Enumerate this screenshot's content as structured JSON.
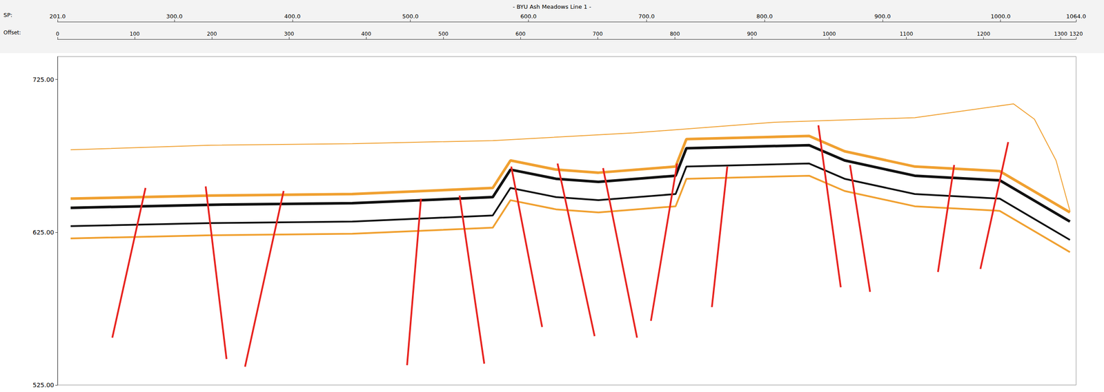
{
  "chart_data": {
    "type": "line",
    "title": "- BYU Ash Meadows Line 1 -",
    "x_label": "Offset:",
    "x2_label": "SP:",
    "xlim": [
      0,
      1320
    ],
    "xticks": [
      0,
      100,
      200,
      300,
      400,
      500,
      600,
      700,
      800,
      900,
      1000,
      1100,
      1200,
      1300,
      1320
    ],
    "x2lim": [
      201,
      1064
    ],
    "x2ticks": [
      {
        "value": 201,
        "label": "201.0"
      },
      {
        "value": 300,
        "label": "300.0"
      },
      {
        "value": 400,
        "label": "400.0"
      },
      {
        "value": 500,
        "label": "500.0"
      },
      {
        "value": 600,
        "label": "600.0"
      },
      {
        "value": 700,
        "label": "700.0"
      },
      {
        "value": 800,
        "label": "800.0"
      },
      {
        "value": 900,
        "label": "900.0"
      },
      {
        "value": 1000,
        "label": "1000.0"
      },
      {
        "value": 1064,
        "label": "1064.0"
      }
    ],
    "ylim": [
      525,
      740
    ],
    "yticks": [
      {
        "value": 525,
        "label": "525.00"
      },
      {
        "value": 625,
        "label": "625.00"
      },
      {
        "value": 725,
        "label": "725.00"
      }
    ],
    "grid": false,
    "series": [
      {
        "color": "#f0a030",
        "line_style": "thin",
        "values": [
          [
            17,
            679
          ],
          [
            199,
            682
          ],
          [
            382,
            683
          ],
          [
            564,
            685
          ],
          [
            746,
            690
          ],
          [
            929,
            697
          ],
          [
            1111,
            700
          ],
          [
            1239,
            709
          ],
          [
            1266,
            699
          ],
          [
            1294,
            672
          ],
          [
            1312,
            639
          ]
        ]
      },
      {
        "color": "#f0a030",
        "line_style": "medium",
        "values": [
          [
            17,
            621
          ],
          [
            199,
            623
          ],
          [
            382,
            624
          ],
          [
            564,
            628
          ],
          [
            587,
            646
          ],
          [
            646,
            640
          ],
          [
            701,
            638
          ],
          [
            801,
            642
          ],
          [
            815,
            660
          ],
          [
            974,
            662
          ],
          [
            1020,
            652
          ],
          [
            1111,
            642
          ],
          [
            1221,
            639
          ],
          [
            1312,
            612
          ]
        ]
      },
      {
        "color": "#111111",
        "line_style": "medium",
        "values": [
          [
            17,
            629
          ],
          [
            199,
            631
          ],
          [
            382,
            632
          ],
          [
            564,
            636
          ],
          [
            587,
            654
          ],
          [
            646,
            648
          ],
          [
            701,
            646
          ],
          [
            801,
            650
          ],
          [
            815,
            668
          ],
          [
            974,
            670
          ],
          [
            1020,
            660
          ],
          [
            1111,
            650
          ],
          [
            1221,
            647
          ],
          [
            1312,
            620
          ]
        ]
      },
      {
        "color": "#f0a030",
        "line_style": "thick",
        "values": [
          [
            17,
            647
          ],
          [
            199,
            649
          ],
          [
            382,
            650
          ],
          [
            564,
            654
          ],
          [
            587,
            672
          ],
          [
            646,
            666
          ],
          [
            701,
            664
          ],
          [
            801,
            668
          ],
          [
            815,
            686
          ],
          [
            974,
            688
          ],
          [
            1020,
            678
          ],
          [
            1111,
            668
          ],
          [
            1221,
            665
          ],
          [
            1312,
            638
          ]
        ]
      },
      {
        "color": "#111111",
        "line_style": "thick",
        "values": [
          [
            17,
            641
          ],
          [
            199,
            643
          ],
          [
            382,
            644
          ],
          [
            564,
            648
          ],
          [
            587,
            666
          ],
          [
            646,
            660
          ],
          [
            701,
            658
          ],
          [
            801,
            662
          ],
          [
            815,
            680
          ],
          [
            974,
            682
          ],
          [
            1020,
            672
          ],
          [
            1111,
            662
          ],
          [
            1221,
            659
          ],
          [
            1312,
            632
          ]
        ]
      },
      {
        "color": "#e8231f",
        "line_style": "medium",
        "values": [
          [
            114,
            654
          ],
          [
            71,
            556
          ]
        ]
      },
      {
        "color": "#e8231f",
        "line_style": "medium",
        "values": [
          [
            192,
            655
          ],
          [
            219,
            542
          ]
        ]
      },
      {
        "color": "#e8231f",
        "line_style": "medium",
        "values": [
          [
            293,
            652
          ],
          [
            243,
            537
          ]
        ]
      },
      {
        "color": "#e8231f",
        "line_style": "medium",
        "values": [
          [
            471,
            647
          ],
          [
            453,
            538
          ]
        ]
      },
      {
        "color": "#e8231f",
        "line_style": "medium",
        "values": [
          [
            521,
            649
          ],
          [
            553,
            539
          ]
        ]
      },
      {
        "color": "#e8231f",
        "line_style": "medium",
        "values": [
          [
            588,
            668
          ],
          [
            628,
            563
          ]
        ]
      },
      {
        "color": "#e8231f",
        "line_style": "medium",
        "values": [
          [
            648,
            670
          ],
          [
            696,
            557
          ]
        ]
      },
      {
        "color": "#e8231f",
        "line_style": "medium",
        "values": [
          [
            707,
            667
          ],
          [
            751,
            556
          ]
        ]
      },
      {
        "color": "#e8231f",
        "line_style": "medium",
        "values": [
          [
            803,
            670
          ],
          [
            769,
            567
          ]
        ]
      },
      {
        "color": "#e8231f",
        "line_style": "medium",
        "values": [
          [
            868,
            668
          ],
          [
            848,
            576
          ]
        ]
      },
      {
        "color": "#e8231f",
        "line_style": "medium",
        "values": [
          [
            986,
            695
          ],
          [
            1015,
            589
          ]
        ]
      },
      {
        "color": "#e8231f",
        "line_style": "medium",
        "values": [
          [
            1027,
            669
          ],
          [
            1053,
            586
          ]
        ]
      },
      {
        "color": "#e8231f",
        "line_style": "medium",
        "values": [
          [
            1162,
            669
          ],
          [
            1141,
            599
          ]
        ]
      },
      {
        "color": "#e8231f",
        "line_style": "medium",
        "values": [
          [
            1232,
            684
          ],
          [
            1196,
            601
          ]
        ]
      }
    ]
  }
}
